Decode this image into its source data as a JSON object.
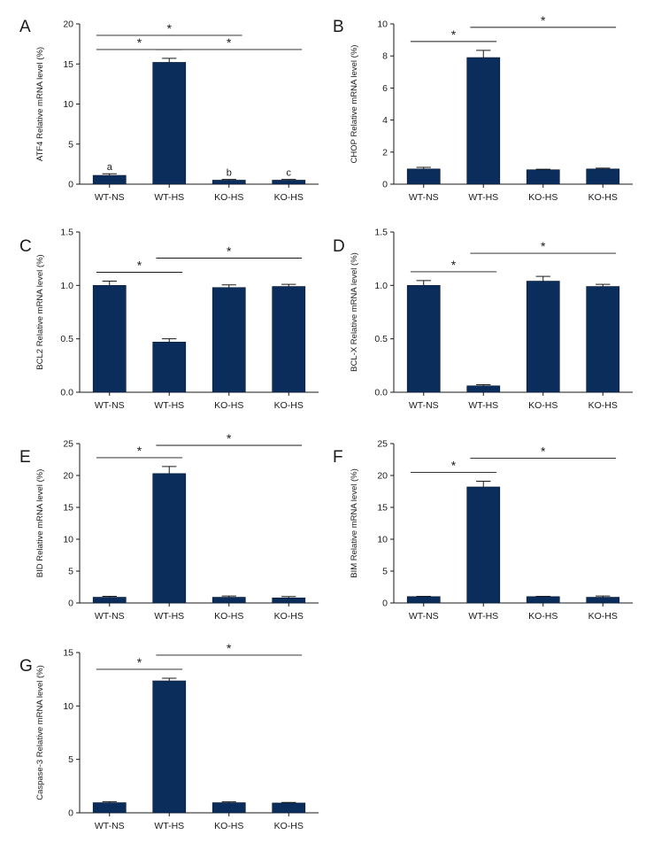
{
  "figure": {
    "bar_color": "#0b2d5c",
    "axis_color": "#1a1a1a"
  },
  "chart_data": [
    {
      "panel": "A",
      "type": "bar",
      "categories": [
        "WT-NS",
        "WT-HS",
        "KO-HS",
        "KO-HS"
      ],
      "values": [
        1.1,
        15.2,
        0.5,
        0.5
      ],
      "errors": [
        0.2,
        0.5,
        0.1,
        0.1
      ],
      "ylabel": "ATF4 Relative mRNA level (%)",
      "ylim": [
        0,
        20
      ],
      "yticks": [
        "0",
        "5",
        "10",
        "15",
        "20"
      ],
      "bar_labels": [
        "a",
        "",
        "b",
        "c"
      ],
      "significance": [
        {
          "from": 0,
          "to": 1,
          "label": "*",
          "level": 0
        },
        {
          "from": 1,
          "to": 3,
          "label": "*",
          "level": 0
        },
        {
          "from": 0,
          "to": 2,
          "label": "*",
          "level": 1
        }
      ]
    },
    {
      "panel": "B",
      "type": "bar",
      "categories": [
        "WT-NS",
        "WT-HS",
        "KO-HS",
        "KO-HS"
      ],
      "values": [
        0.95,
        7.9,
        0.9,
        0.95
      ],
      "errors": [
        0.1,
        0.45,
        0.03,
        0.05
      ],
      "ylabel": "CHOP Relative mRNA level (%)",
      "ylim": [
        0,
        10
      ],
      "yticks": [
        "0",
        "2",
        "4",
        "6",
        "8",
        "10"
      ],
      "significance": [
        {
          "from": 0,
          "to": 1,
          "label": "*",
          "level": 0
        },
        {
          "from": 1,
          "to": 3,
          "label": "*",
          "level": 1
        }
      ]
    },
    {
      "panel": "C",
      "type": "bar",
      "categories": [
        "WT-NS",
        "WT-HS",
        "KO-HS",
        "KO-HS"
      ],
      "values": [
        1.0,
        0.47,
        0.98,
        0.99
      ],
      "errors": [
        0.04,
        0.03,
        0.025,
        0.02
      ],
      "ylabel": "BCL2 Relative mRNA level (%)",
      "ylim": [
        0,
        1.5
      ],
      "yticks": [
        "0.0",
        "0.5",
        "1.0",
        "1.5"
      ],
      "significance": [
        {
          "from": 0,
          "to": 1,
          "label": "*",
          "level": 0
        },
        {
          "from": 1,
          "to": 3,
          "label": "*",
          "level": 1
        }
      ]
    },
    {
      "panel": "D",
      "type": "bar",
      "categories": [
        "WT-NS",
        "WT-HS",
        "KO-HS",
        "KO-HS"
      ],
      "values": [
        1.0,
        0.06,
        1.04,
        0.99
      ],
      "errors": [
        0.045,
        0.01,
        0.045,
        0.02
      ],
      "ylabel": "BCL-X Relative mRNA level (%)",
      "ylim": [
        0,
        1.5
      ],
      "yticks": [
        "0.0",
        "0.5",
        "1.0",
        "1.5"
      ],
      "significance": [
        {
          "from": 0,
          "to": 1,
          "label": "*",
          "level": 0
        },
        {
          "from": 1,
          "to": 3,
          "label": "*",
          "level": 1
        }
      ]
    },
    {
      "panel": "E",
      "type": "bar",
      "categories": [
        "WT-NS",
        "WT-HS",
        "KO-HS",
        "KO-HS"
      ],
      "values": [
        0.9,
        20.3,
        0.9,
        0.8
      ],
      "errors": [
        0.15,
        1.1,
        0.2,
        0.2
      ],
      "ylabel": "BID Relative mRNA level (%)",
      "ylim": [
        0,
        25
      ],
      "yticks": [
        "0",
        "5",
        "10",
        "15",
        "20",
        "25"
      ],
      "significance": [
        {
          "from": 0,
          "to": 1,
          "label": "*",
          "level": 0
        },
        {
          "from": 1,
          "to": 3,
          "label": "*",
          "level": 1
        }
      ]
    },
    {
      "panel": "F",
      "type": "bar",
      "categories": [
        "WT-NS",
        "WT-HS",
        "KO-HS",
        "KO-HS"
      ],
      "values": [
        1.0,
        18.2,
        1.0,
        0.9
      ],
      "errors": [
        0.05,
        0.9,
        0.05,
        0.2
      ],
      "ylabel": "BIM Relative mRNA level (%)",
      "ylim": [
        0,
        25
      ],
      "yticks": [
        "0",
        "5",
        "10",
        "15",
        "20",
        "25"
      ],
      "significance": [
        {
          "from": 0,
          "to": 1,
          "label": "*",
          "level": 0
        },
        {
          "from": 1,
          "to": 3,
          "label": "*",
          "level": 1
        }
      ]
    },
    {
      "panel": "G",
      "type": "bar",
      "categories": [
        "WT-NS",
        "WT-HS",
        "KO-HS",
        "KO-HS"
      ],
      "values": [
        0.95,
        12.35,
        0.95,
        0.92
      ],
      "errors": [
        0.1,
        0.25,
        0.08,
        0.05
      ],
      "ylabel": "Caspase-3 Relative mRNA level (%)",
      "ylim": [
        0,
        15
      ],
      "yticks": [
        "0",
        "5",
        "10",
        "15"
      ],
      "significance": [
        {
          "from": 0,
          "to": 1,
          "label": "*",
          "level": 0
        },
        {
          "from": 1,
          "to": 3,
          "label": "*",
          "level": 1
        }
      ]
    }
  ]
}
